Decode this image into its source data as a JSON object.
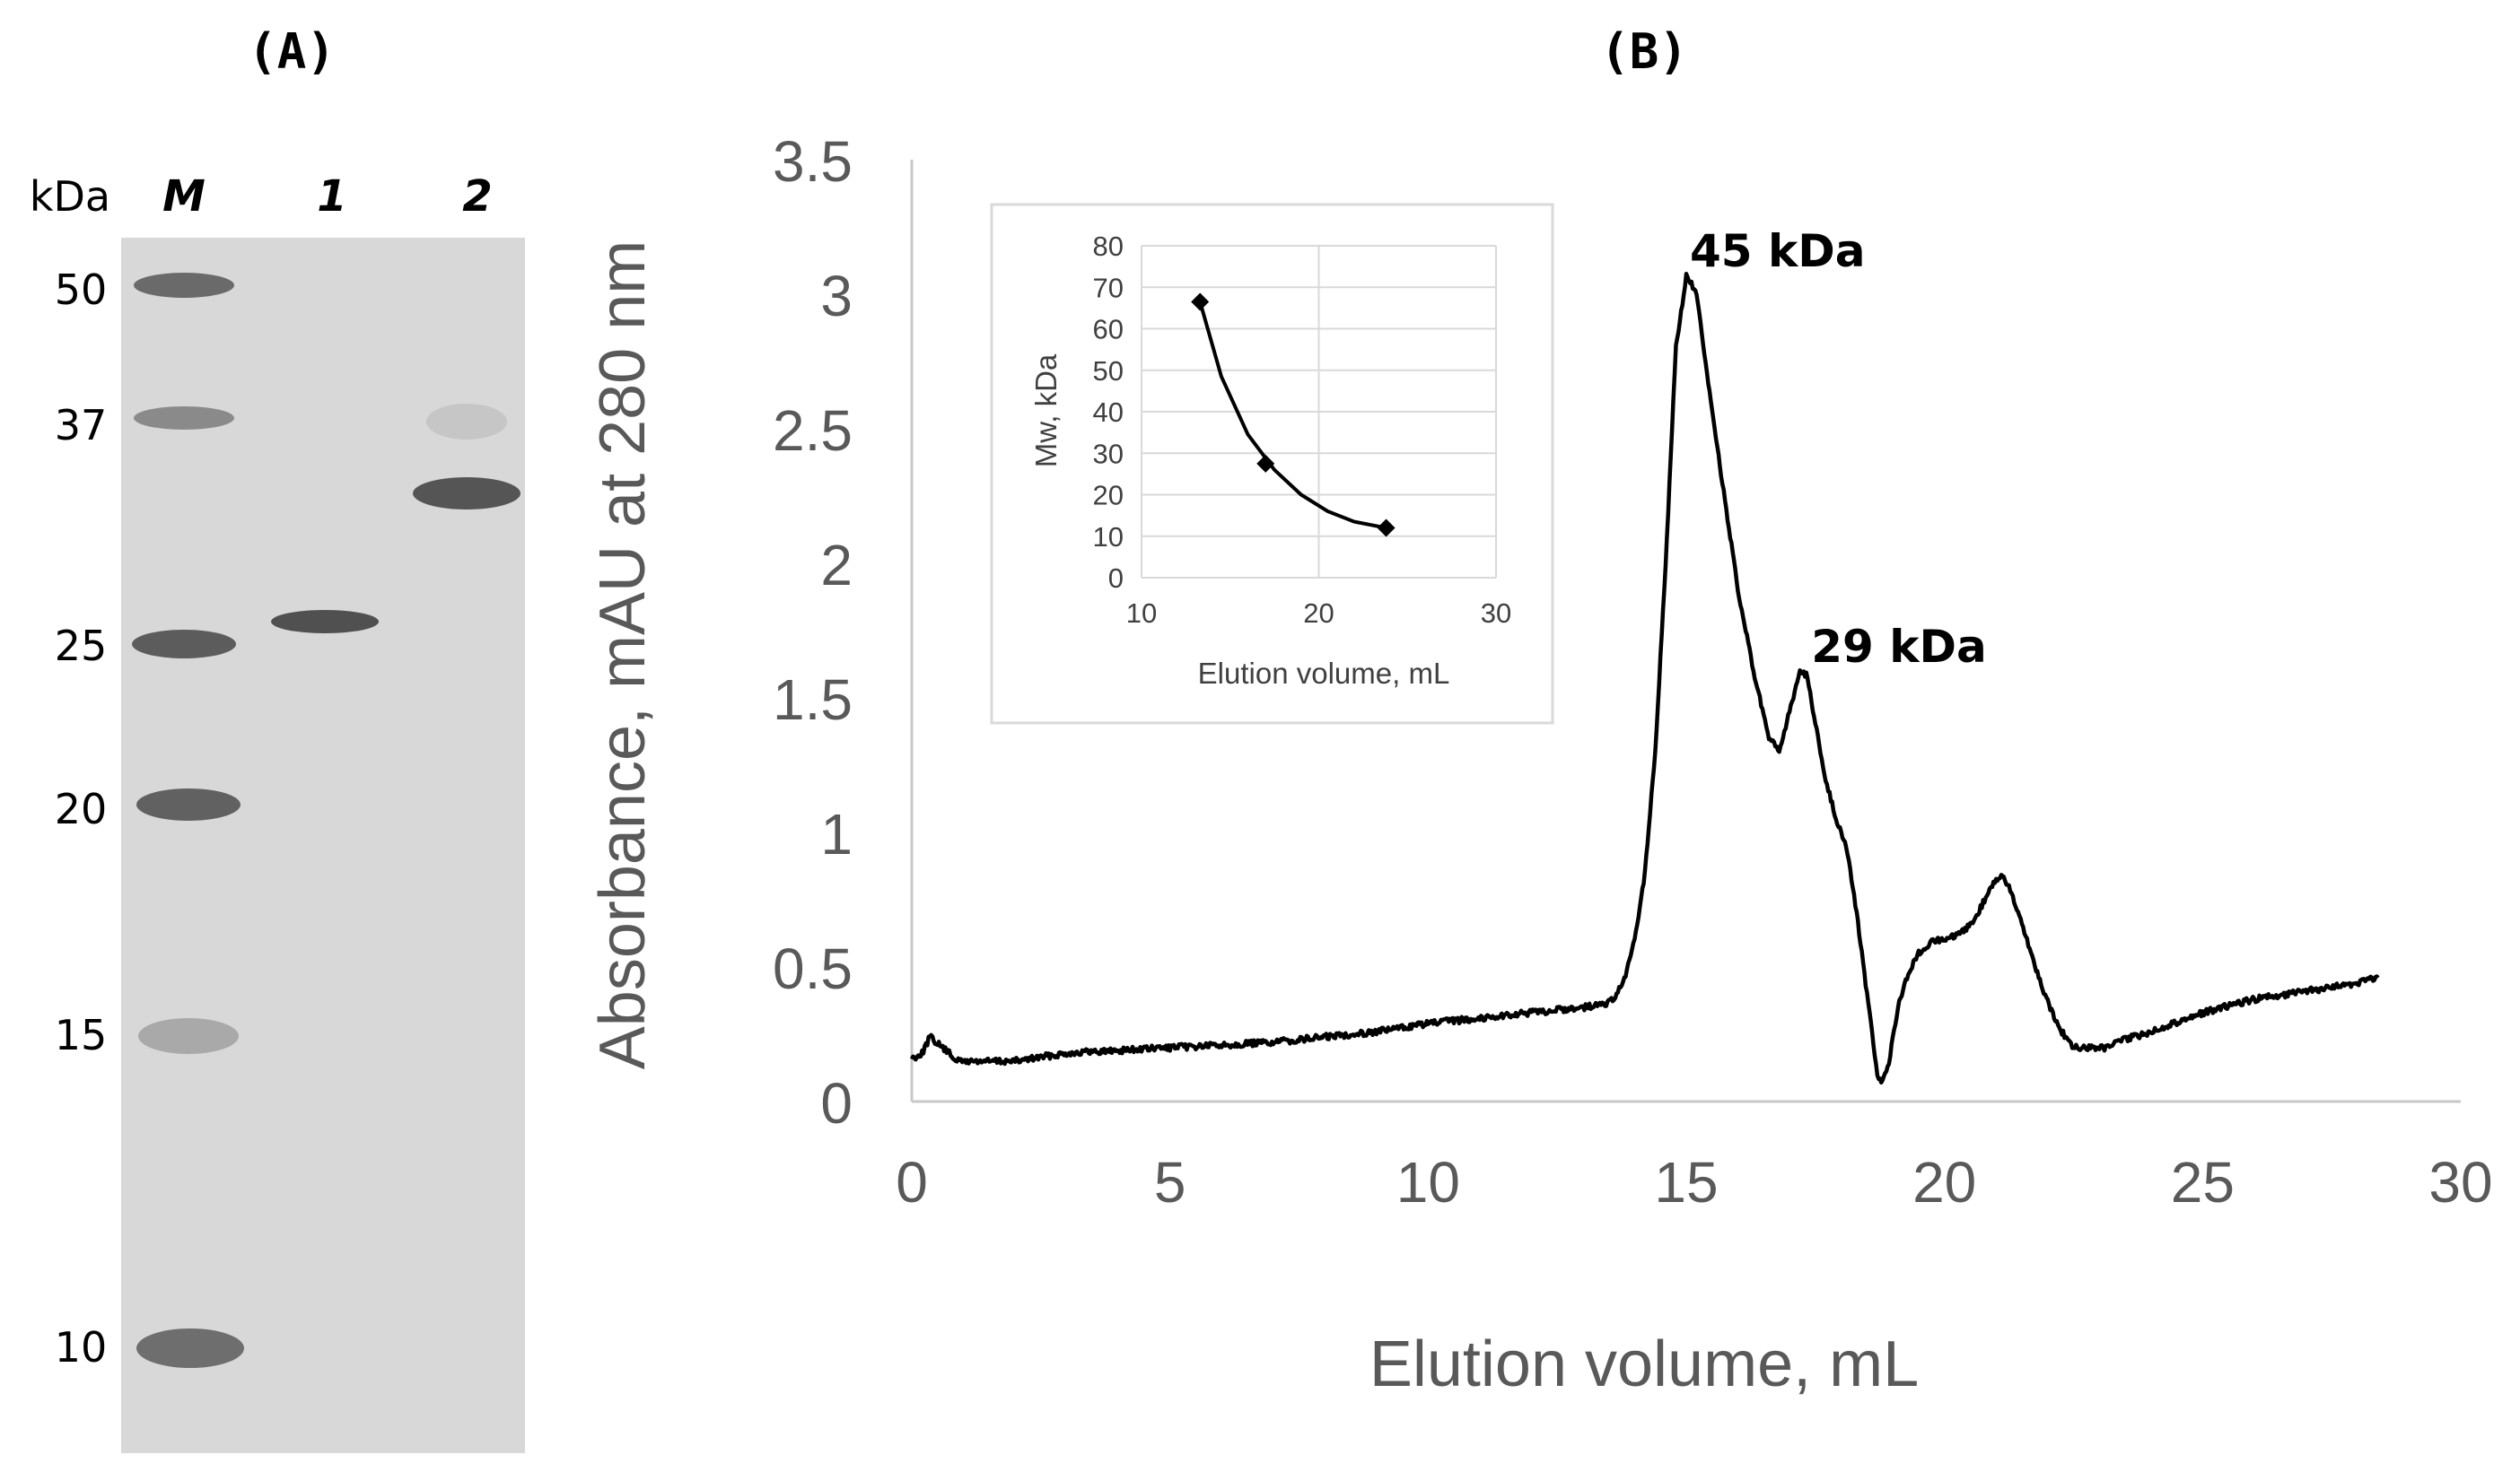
{
  "panels": {
    "a_label": "(A)",
    "b_label": "(B)"
  },
  "gel": {
    "unit_label": "kDa",
    "lanes": [
      {
        "key": "m",
        "label": "M",
        "bands": [
          50,
          37,
          25,
          20,
          15,
          10
        ]
      },
      {
        "key": "1",
        "label": "1",
        "bands": [
          25.8
        ]
      },
      {
        "key": "2",
        "label": "2",
        "bands": [
          32.5
        ]
      }
    ],
    "marker_labels": [
      "50",
      "37",
      "25",
      "20",
      "15",
      "10"
    ],
    "colors": {
      "background": "#d7d7d7",
      "band": "#555555"
    }
  },
  "chart_data": [
    {
      "type": "line",
      "title": "",
      "xlabel": "Elution volume, mL",
      "ylabel": "Absorbance, mAU at 280 nm",
      "xlim": [
        0,
        30
      ],
      "ylim": [
        0,
        3.5
      ],
      "x_ticks": [
        "0",
        "5",
        "10",
        "15",
        "20",
        "25",
        "30"
      ],
      "y_ticks": [
        "0",
        "0.5",
        "1",
        "1.5",
        "2",
        "2.5",
        "3",
        "3.5"
      ],
      "grid": false,
      "series": [
        {
          "name": "chromatogram",
          "color": "#000000",
          "x": [
            0,
            0.2,
            0.35,
            0.6,
            0.9,
            1.5,
            2,
            3,
            4,
            5,
            6,
            7,
            8,
            9,
            10,
            11,
            12,
            12.5,
            13,
            13.4,
            13.6,
            13.8,
            14.0,
            14.2,
            14.4,
            14.6,
            14.8,
            15.0,
            15.2,
            15.4,
            15.7,
            16.0,
            16.3,
            16.6,
            16.8,
            17.0,
            17.2,
            17.35,
            17.5,
            17.7,
            17.9,
            18.1,
            18.3,
            18.5,
            18.7,
            18.8,
            18.9,
            19.1,
            19.3,
            19.5,
            19.8,
            20.0,
            20.3,
            20.6,
            20.9,
            21.1,
            21.3,
            21.6,
            21.9,
            22.2,
            22.5,
            22.8,
            23.1,
            23.5,
            24,
            25,
            26,
            27,
            28,
            28.4
          ],
          "y": [
            0.16,
            0.18,
            0.24,
            0.2,
            0.15,
            0.15,
            0.15,
            0.18,
            0.19,
            0.2,
            0.21,
            0.22,
            0.24,
            0.26,
            0.29,
            0.31,
            0.33,
            0.34,
            0.35,
            0.36,
            0.38,
            0.45,
            0.6,
            0.85,
            1.3,
            2.0,
            2.8,
            3.07,
            3.0,
            2.7,
            2.3,
            1.9,
            1.6,
            1.35,
            1.3,
            1.45,
            1.6,
            1.58,
            1.4,
            1.2,
            1.05,
            0.95,
            0.7,
            0.4,
            0.1,
            0.07,
            0.12,
            0.35,
            0.48,
            0.55,
            0.6,
            0.6,
            0.62,
            0.68,
            0.8,
            0.84,
            0.78,
            0.6,
            0.42,
            0.28,
            0.2,
            0.2,
            0.2,
            0.23,
            0.26,
            0.33,
            0.38,
            0.41,
            0.44,
            0.46
          ]
        }
      ],
      "annotations": [
        {
          "text": "45 kDa",
          "x": 15.0,
          "y": 3.07
        },
        {
          "text": "29 kDa",
          "x": 17.35,
          "y": 1.6
        }
      ]
    },
    {
      "type": "scatter",
      "title": "",
      "xlabel": "Elution volume, mL",
      "ylabel": "Mw, kDa",
      "xlim": [
        10,
        30
      ],
      "ylim": [
        0,
        80
      ],
      "x_ticks": [
        "10",
        "20",
        "30"
      ],
      "y_ticks": [
        "0",
        "10",
        "20",
        "30",
        "40",
        "50",
        "60",
        "70",
        "80"
      ],
      "grid": true,
      "series": [
        {
          "name": "standards",
          "x": [
            13.3,
            17.0,
            23.8
          ],
          "y": [
            66.5,
            27.5,
            12.0
          ]
        }
      ],
      "trendline": {
        "x": [
          13.3,
          14.5,
          16,
          17.5,
          19,
          20.5,
          22,
          23.8
        ],
        "y": [
          66.5,
          48.5,
          34.5,
          26.0,
          20.0,
          16.0,
          13.5,
          12.0
        ]
      }
    }
  ]
}
